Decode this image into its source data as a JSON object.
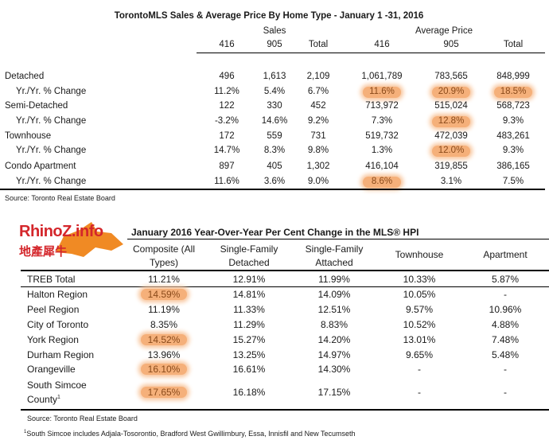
{
  "sales_table": {
    "title": "TorontoMLS Sales & Average Price  By Home Type - January 1 -31, 2016",
    "group_sales": "Sales",
    "group_price": "Average Price",
    "columns": [
      "416",
      "905",
      "Total",
      "416",
      "905",
      "Total"
    ],
    "rows": [
      {
        "label": "Detached",
        "values": [
          "496",
          "1,613",
          "2,109",
          "1,061,789",
          "783,565",
          "848,999"
        ],
        "highlight": []
      },
      {
        "label": "Yr./Yr. % Change",
        "values": [
          "11.2%",
          "5.4%",
          "6.7%",
          "11.6%",
          "20.9%",
          "18.5%"
        ],
        "highlight": [
          3,
          4,
          5
        ],
        "sub": true
      },
      {
        "label": "Semi-Detached",
        "values": [
          "122",
          "330",
          "452",
          "713,972",
          "515,024",
          "568,723"
        ],
        "highlight": []
      },
      {
        "label": "Yr./Yr. % Change",
        "values": [
          "-3.2%",
          "14.6%",
          "9.2%",
          "7.3%",
          "12.8%",
          "9.3%"
        ],
        "highlight": [
          4
        ],
        "sub": true
      },
      {
        "label": "Townhouse",
        "values": [
          "172",
          "559",
          "731",
          "519,732",
          "472,039",
          "483,261"
        ],
        "highlight": []
      },
      {
        "label": "Yr./Yr. % Change",
        "values": [
          "14.7%",
          "8.3%",
          "9.8%",
          "1.3%",
          "12.0%",
          "9.3%"
        ],
        "highlight": [
          4
        ],
        "sub": true
      },
      {
        "label": "Condo Apartment",
        "values": [
          "897",
          "405",
          "1,302",
          "416,104",
          "319,855",
          "386,165"
        ],
        "highlight": []
      },
      {
        "label": "Yr./Yr. % Change",
        "values": [
          "11.6%",
          "3.6%",
          "9.0%",
          "8.6%",
          "3.1%",
          "7.5%"
        ],
        "highlight": [
          3
        ],
        "sub": true
      }
    ],
    "source": "Source: Toronto Real Estate Board"
  },
  "logo": {
    "text": "RhinoZ.info",
    "subtext": "地產犀牛"
  },
  "hpi_table": {
    "title": "January 2016 Year-Over-Year Per Cent Change in the MLS® HPI",
    "columns": [
      [
        "Composite (All",
        "Types)"
      ],
      [
        "Single-Family",
        "Detached"
      ],
      [
        "Single-Family",
        "Attached"
      ],
      [
        "Townhouse"
      ],
      [
        "Apartment"
      ]
    ],
    "rows": [
      {
        "label": "TREB Total",
        "values": [
          "11.21%",
          "12.91%",
          "11.99%",
          "10.33%",
          "5.87%"
        ],
        "highlight": false
      },
      {
        "label": "Halton Region",
        "values": [
          "14.59%",
          "14.81%",
          "14.09%",
          "10.05%",
          "-"
        ],
        "highlight": true
      },
      {
        "label": "Peel Region",
        "values": [
          "11.19%",
          "11.33%",
          "12.51%",
          "9.57%",
          "10.96%"
        ],
        "highlight": false
      },
      {
        "label": "City of Toronto",
        "values": [
          "8.35%",
          "11.29%",
          "8.83%",
          "10.52%",
          "4.88%"
        ],
        "highlight": false
      },
      {
        "label": "York Region",
        "values": [
          "14.52%",
          "15.27%",
          "14.20%",
          "13.01%",
          "7.48%"
        ],
        "highlight": true
      },
      {
        "label": "Durham Region",
        "values": [
          "13.96%",
          "13.25%",
          "14.97%",
          "9.65%",
          "5.48%"
        ],
        "highlight": false
      },
      {
        "label": "Orangeville",
        "values": [
          "16.10%",
          "16.61%",
          "14.30%",
          "-",
          "-"
        ],
        "highlight": true
      },
      {
        "label": "South Simcoe",
        "label2": "County",
        "sup": "1",
        "values": [
          "17.65%",
          "16.18%",
          "17.15%",
          "-",
          "-"
        ],
        "highlight": true
      }
    ],
    "source": "Source: Toronto Real Estate Board",
    "footnote_mark": "1",
    "footnote": "South Simcoe includes Adjala-Tosorontio, Bradford West Gwillimbury, Essa, Innisfil and New Tecumseth"
  },
  "colors": {
    "highlight": "#f5b07a",
    "logo_red": "#d4262b",
    "logo_orange": "#f08a24"
  }
}
